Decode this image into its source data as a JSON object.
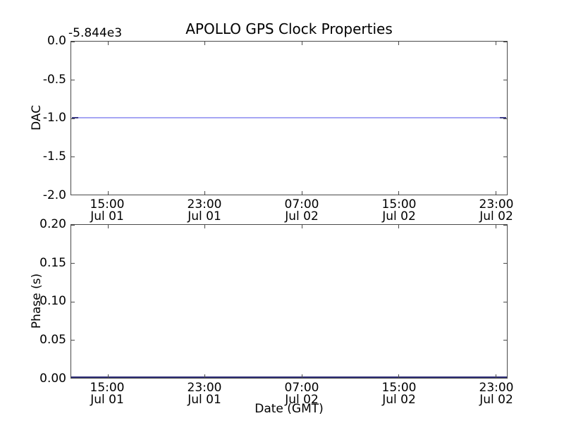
{
  "chart_data": [
    {
      "type": "line",
      "subplot": "top",
      "title": "APOLLO GPS Clock Properties",
      "ylabel": "DAC",
      "y_offset_text": "-5.844e3",
      "ylim": [
        -2.0,
        0.0
      ],
      "yticks": [
        "0.0",
        "-0.5",
        "-1.0",
        "-1.5",
        "-2.0"
      ],
      "xticks": [
        {
          "time": "15:00",
          "date": "Jul 01"
        },
        {
          "time": "23:00",
          "date": "Jul 01"
        },
        {
          "time": "07:00",
          "date": "Jul 02"
        },
        {
          "time": "15:00",
          "date": "Jul 02"
        },
        {
          "time": "23:00",
          "date": "Jul 02"
        }
      ],
      "grid": false,
      "legend": false,
      "series": [
        {
          "name": "DAC",
          "color": "#0000ff",
          "shape": "constant horizontal line spanning full x-range",
          "y_constant": -1.0
        }
      ]
    },
    {
      "type": "line",
      "subplot": "bottom",
      "ylabel": "Phase (s)",
      "xlabel": "Date (GMT)",
      "ylim": [
        0.0,
        0.2
      ],
      "yticks": [
        "0.20",
        "0.15",
        "0.10",
        "0.05",
        "0.00"
      ],
      "xticks": [
        {
          "time": "15:00",
          "date": "Jul 01"
        },
        {
          "time": "23:00",
          "date": "Jul 01"
        },
        {
          "time": "07:00",
          "date": "Jul 02"
        },
        {
          "time": "15:00",
          "date": "Jul 02"
        },
        {
          "time": "23:00",
          "date": "Jul 02"
        }
      ],
      "grid": false,
      "legend": false,
      "series": [
        {
          "name": "Phase",
          "color": "#0000ff",
          "shape": "constant horizontal line along bottom axis spanning full x-range",
          "y_constant": 0.0
        }
      ]
    }
  ],
  "colors": {
    "background": "#ffffff",
    "text": "#000000",
    "spine": "#4a4a4a",
    "line_blue_rendered": "#a6a6f4",
    "line_blue_ends": "#3c3c86",
    "phase_line_rendered": "#2e2e78"
  }
}
